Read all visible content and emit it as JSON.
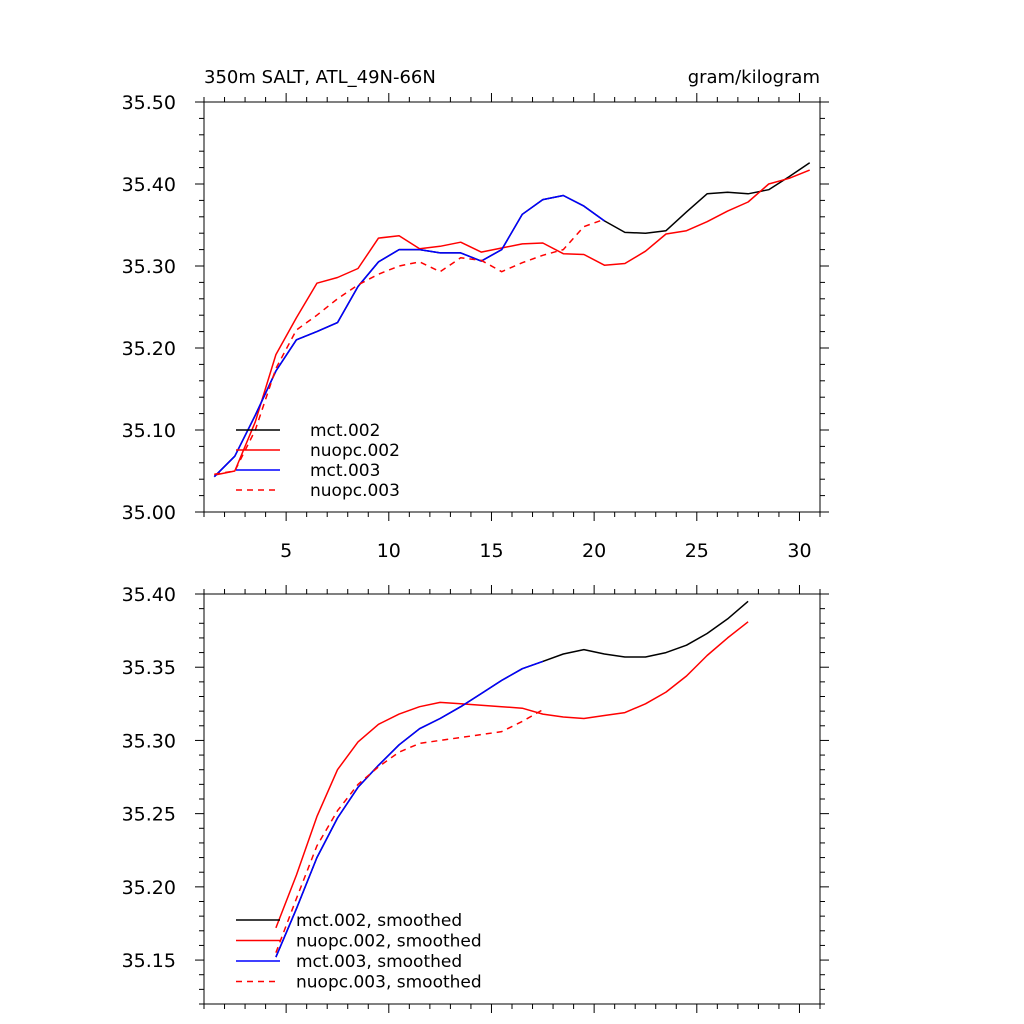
{
  "chart_data": [
    {
      "type": "line",
      "title_left": "350m SALT, ATL_49N-66N",
      "title_right": "gram/kilogram",
      "xlim": [
        1,
        31
      ],
      "ylim": [
        35.0,
        35.5
      ],
      "xticks": [
        5,
        10,
        15,
        20,
        25,
        30
      ],
      "xtick_labels": [
        "5",
        "10",
        "15",
        "20",
        "25",
        "30"
      ],
      "yticks": [
        35.0,
        35.1,
        35.2,
        35.3,
        35.4,
        35.5
      ],
      "ytick_labels": [
        "35.00",
        "35.10",
        "35.20",
        "35.30",
        "35.40",
        "35.50"
      ],
      "show_xtick_labels": true,
      "series": [
        {
          "name": "mct.002",
          "color": "#000000",
          "dash": "solid",
          "x": [
            1.5,
            2.5,
            3.5,
            4.5,
            5.5,
            6.5,
            7.5,
            8.5,
            9.5,
            10.5,
            11.5,
            12.5,
            13.5,
            14.5,
            15.5,
            16.5,
            17.5,
            18.5,
            19.5,
            20.5,
            21.5,
            22.5,
            23.5,
            24.5,
            25.5,
            26.5,
            27.5,
            28.5,
            29.5,
            30.5
          ],
          "y": [
            35.043,
            35.068,
            35.118,
            35.172,
            35.21,
            35.22,
            35.231,
            35.275,
            35.305,
            35.32,
            35.32,
            35.316,
            35.316,
            35.306,
            35.32,
            35.363,
            35.381,
            35.386,
            35.373,
            35.355,
            35.341,
            35.34,
            35.343,
            35.366,
            35.388,
            35.39,
            35.388,
            35.393,
            35.409,
            35.426
          ]
        },
        {
          "name": "nuopc.002",
          "color": "#ff0000",
          "dash": "solid",
          "x": [
            1.5,
            2.5,
            3.5,
            4.5,
            5.5,
            6.5,
            7.5,
            8.5,
            9.5,
            10.5,
            11.5,
            12.5,
            13.5,
            14.5,
            15.5,
            16.5,
            17.5,
            18.5,
            19.5,
            20.5,
            21.5,
            22.5,
            23.5,
            24.5,
            25.5,
            26.5,
            27.5,
            28.5,
            29.5,
            30.5
          ],
          "y": [
            35.045,
            35.05,
            35.11,
            35.192,
            35.237,
            35.279,
            35.286,
            35.297,
            35.334,
            35.337,
            35.321,
            35.324,
            35.329,
            35.317,
            35.322,
            35.327,
            35.328,
            35.315,
            35.314,
            35.301,
            35.303,
            35.318,
            35.339,
            35.343,
            35.354,
            35.367,
            35.378,
            35.4,
            35.407,
            35.417
          ]
        },
        {
          "name": "mct.003",
          "color": "#0000ff",
          "dash": "solid",
          "x": [
            1.5,
            2.5,
            3.5,
            4.5,
            5.5,
            6.5,
            7.5,
            8.5,
            9.5,
            10.5,
            11.5,
            12.5,
            13.5,
            14.5,
            15.5,
            16.5,
            17.5,
            18.5,
            19.5,
            20.5
          ],
          "y": [
            35.043,
            35.068,
            35.118,
            35.172,
            35.21,
            35.22,
            35.231,
            35.275,
            35.305,
            35.32,
            35.32,
            35.316,
            35.316,
            35.306,
            35.32,
            35.363,
            35.381,
            35.386,
            35.373,
            35.355
          ]
        },
        {
          "name": "nuopc.003",
          "color": "#ff0000",
          "dash": "dashed",
          "x": [
            1.5,
            2.5,
            3.5,
            4.5,
            5.5,
            6.5,
            7.5,
            8.5,
            9.5,
            10.5,
            11.5,
            12.5,
            13.5,
            14.5,
            15.5,
            16.5,
            17.5,
            18.5,
            19.5,
            20.5
          ],
          "y": [
            35.046,
            35.05,
            35.1,
            35.175,
            35.222,
            35.24,
            35.26,
            35.277,
            35.29,
            35.3,
            35.305,
            35.293,
            35.31,
            35.307,
            35.293,
            35.304,
            35.313,
            35.32,
            35.348,
            35.357
          ]
        }
      ]
    },
    {
      "type": "line",
      "xlim": [
        1,
        31
      ],
      "ylim": [
        35.12,
        35.4
      ],
      "xticks": [
        5,
        10,
        15,
        20,
        25,
        30
      ],
      "xtick_labels": [],
      "yticks": [
        35.15,
        35.2,
        35.25,
        35.3,
        35.35,
        35.4
      ],
      "ytick_labels": [
        "35.15",
        "35.20",
        "35.25",
        "35.30",
        "35.35",
        "35.40"
      ],
      "show_xtick_labels": false,
      "series": [
        {
          "name": "mct.002, smoothed",
          "color": "#000000",
          "dash": "solid",
          "x": [
            4.5,
            5.5,
            6.5,
            7.5,
            8.5,
            9.5,
            10.5,
            11.5,
            12.5,
            13.5,
            14.5,
            15.5,
            16.5,
            17.5,
            18.5,
            19.5,
            20.5,
            21.5,
            22.5,
            23.5,
            24.5,
            25.5,
            26.5,
            27.5
          ],
          "y": [
            35.152,
            35.185,
            35.22,
            35.247,
            35.268,
            35.283,
            35.297,
            35.308,
            35.315,
            35.323,
            35.332,
            35.341,
            35.349,
            35.354,
            35.359,
            35.362,
            35.359,
            35.357,
            35.357,
            35.36,
            35.365,
            35.373,
            35.383,
            35.395
          ]
        },
        {
          "name": "nuopc.002, smoothed",
          "color": "#ff0000",
          "dash": "solid",
          "x": [
            4.5,
            5.5,
            6.5,
            7.5,
            8.5,
            9.5,
            10.5,
            11.5,
            12.5,
            13.5,
            14.5,
            15.5,
            16.5,
            17.5,
            18.5,
            19.5,
            20.5,
            21.5,
            22.5,
            23.5,
            24.5,
            25.5,
            26.5,
            27.5
          ],
          "y": [
            35.172,
            35.208,
            35.248,
            35.28,
            35.299,
            35.311,
            35.318,
            35.323,
            35.326,
            35.325,
            35.324,
            35.323,
            35.322,
            35.318,
            35.316,
            35.315,
            35.317,
            35.319,
            35.325,
            35.333,
            35.344,
            35.358,
            35.37,
            35.381
          ]
        },
        {
          "name": "mct.003, smoothed",
          "color": "#0000ff",
          "dash": "solid",
          "x": [
            4.5,
            5.5,
            6.5,
            7.5,
            8.5,
            9.5,
            10.5,
            11.5,
            12.5,
            13.5,
            14.5,
            15.5,
            16.5,
            17.5
          ],
          "y": [
            35.152,
            35.185,
            35.22,
            35.247,
            35.268,
            35.283,
            35.297,
            35.308,
            35.315,
            35.323,
            35.332,
            35.341,
            35.349,
            35.354
          ]
        },
        {
          "name": "nuopc.003, smoothed",
          "color": "#ff0000",
          "dash": "dashed",
          "x": [
            4.5,
            5.5,
            6.5,
            7.5,
            8.5,
            9.5,
            10.5,
            11.5,
            12.5,
            13.5,
            14.5,
            15.5,
            16.5,
            17.5
          ],
          "y": [
            35.155,
            35.192,
            35.228,
            35.252,
            35.27,
            35.282,
            35.292,
            35.298,
            35.3,
            35.302,
            35.304,
            35.306,
            35.313,
            35.321
          ]
        }
      ]
    }
  ]
}
